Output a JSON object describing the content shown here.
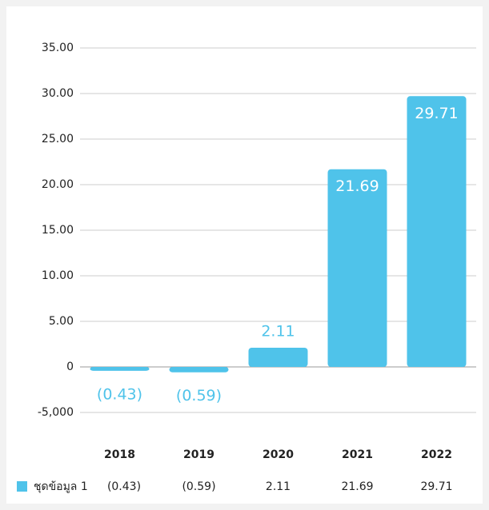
{
  "chart_data": {
    "type": "bar",
    "categories": [
      "2018",
      "2019",
      "2020",
      "2021",
      "2022"
    ],
    "series": [
      {
        "name": "ชุดข้อมูล 1",
        "color": "#4fc3ea",
        "values": [
          -0.43,
          -0.59,
          2.11,
          21.69,
          29.71
        ],
        "value_labels": [
          "(0.43)",
          "(0.59)",
          "2.11",
          "21.69",
          "29.71"
        ]
      }
    ],
    "ylim": [
      -5,
      35
    ],
    "yticks": [
      {
        "value": 35,
        "label": "35.00"
      },
      {
        "value": 30,
        "label": "30.00"
      },
      {
        "value": 25,
        "label": "25.00"
      },
      {
        "value": 20,
        "label": "20.00"
      },
      {
        "value": 15,
        "label": "15.00"
      },
      {
        "value": 10,
        "label": "10.00"
      },
      {
        "value": 5,
        "label": "5.00"
      },
      0,
      {
        "value": -5,
        "label": "-5,000"
      }
    ],
    "grid": true,
    "legend": "bottom"
  }
}
